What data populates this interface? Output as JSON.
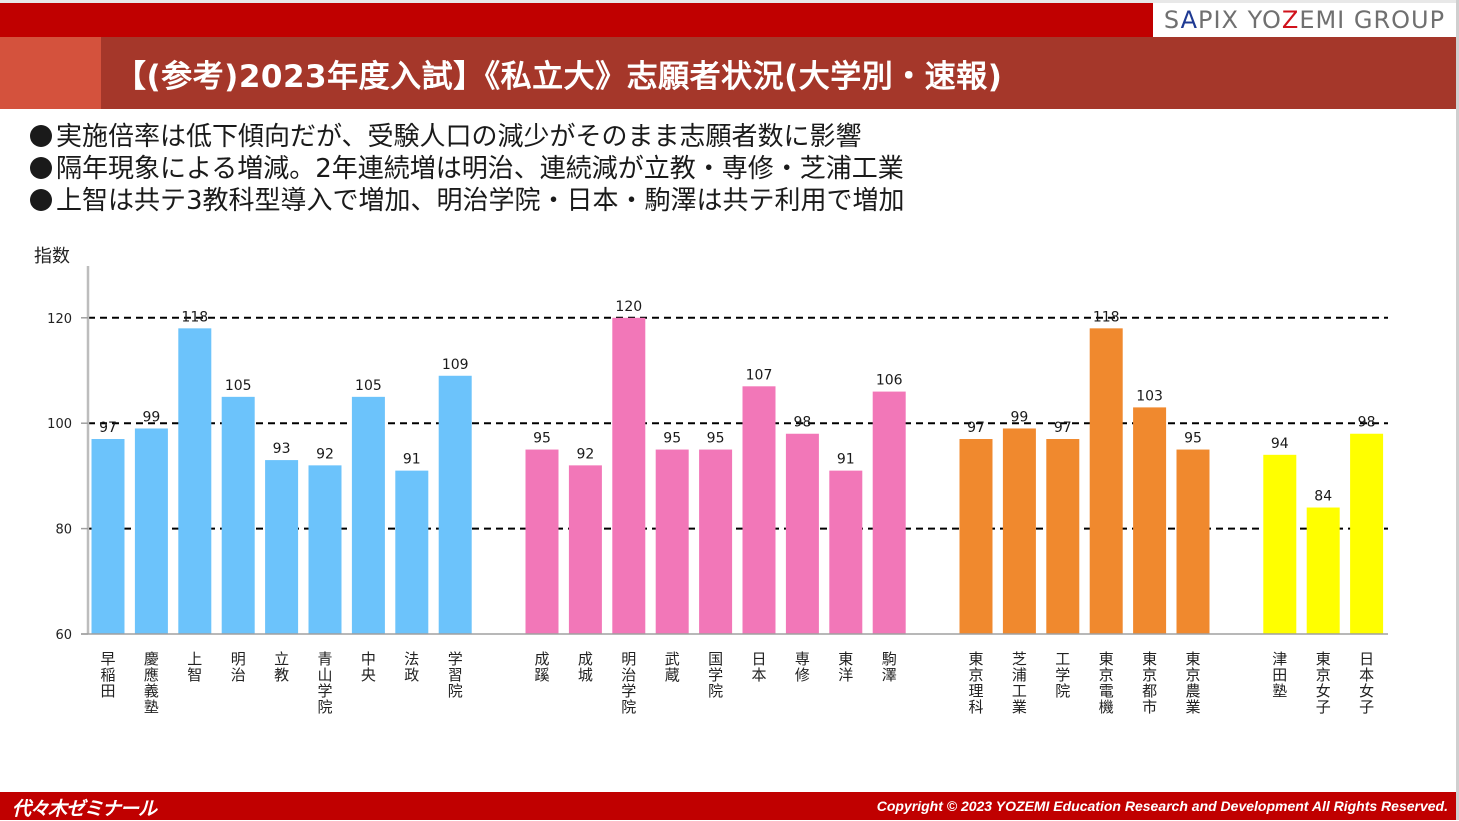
{
  "header": {
    "brand": {
      "s": "S",
      "a": "A",
      "mid": "PIX YO",
      "z": "Z",
      "rest": "EMI GROUP"
    },
    "title": "【(参考)2023年度入試】《私立大》志願者状況(大学別・速報)"
  },
  "bullets": [
    "実施倍率は低下傾向だが、受験人口の減少がそのまま志願者数に影響",
    "隔年現象による増減。2年連続増は明治、連続減が立教・専修・芝浦工業",
    "上智は共テ3教科型導入で増加、明治学院・日本・駒澤は共テ利用で増加"
  ],
  "footer": {
    "logo": "代々木ゼミナール",
    "copyright": "Copyright © 2023 YOZEMI  Education Research and Development All Rights Reserved."
  },
  "colors": {
    "group1": "#6cc3fb",
    "group2": "#f277b8",
    "group3": "#f0892e",
    "group4": "#ffff00",
    "header_red": "#c00000",
    "title_bg": "#a5372a",
    "title_accent": "#d4523d"
  },
  "chart_data": {
    "type": "bar",
    "title": "",
    "ylabel": "指数",
    "xlabel": "",
    "ylim": [
      60,
      125
    ],
    "yticks": [
      60,
      80,
      100,
      120
    ],
    "gridlines": [
      80,
      100,
      120
    ],
    "grid": "dashed",
    "legend": "none",
    "groups": [
      {
        "name": "group1",
        "color": "#6cc3fb",
        "categories": [
          "早稲田",
          "慶應義塾",
          "上智",
          "明治",
          "立教",
          "青山学院",
          "中央",
          "法政",
          "学習院"
        ],
        "values": [
          97,
          99,
          118,
          105,
          93,
          92,
          105,
          91,
          109
        ]
      },
      {
        "name": "group2",
        "color": "#f277b8",
        "categories": [
          "成蹊",
          "成城",
          "明治学院",
          "武蔵",
          "国学院",
          "日本",
          "専修",
          "東洋",
          "駒澤"
        ],
        "values": [
          95,
          92,
          120,
          95,
          95,
          107,
          98,
          91,
          106
        ]
      },
      {
        "name": "group3",
        "color": "#f0892e",
        "categories": [
          "東京理科",
          "芝浦工業",
          "工学院",
          "東京電機",
          "東京都市",
          "東京農業"
        ],
        "values": [
          97,
          99,
          97,
          118,
          103,
          95
        ]
      },
      {
        "name": "group4",
        "color": "#ffff00",
        "categories": [
          "津田塾",
          "東京女子",
          "日本女子"
        ],
        "values": [
          94,
          84,
          98
        ]
      }
    ]
  }
}
